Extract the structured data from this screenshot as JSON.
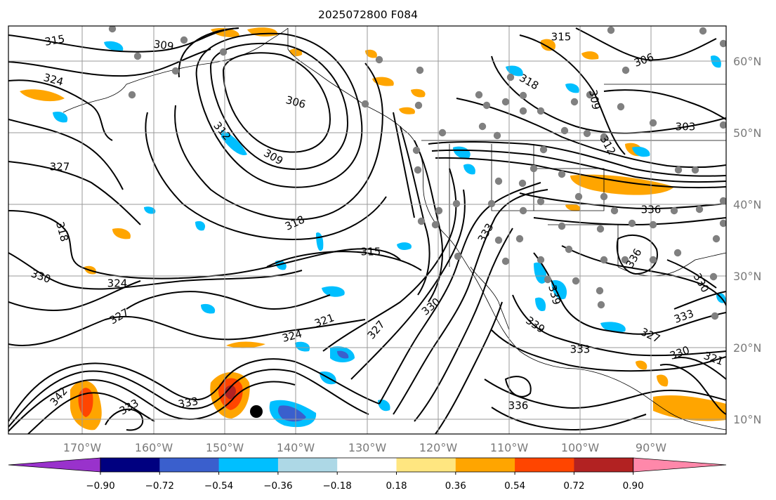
{
  "title": "2025072800 F084",
  "longitude_labels": [
    "170°W",
    "160°W",
    "150°W",
    "140°W",
    "130°W",
    "120°W",
    "110°W",
    "100°W",
    "90°W"
  ],
  "latitude_labels": [
    "60°N",
    "50°N",
    "40°N",
    "30°N",
    "20°N",
    "10°N"
  ],
  "colorbar": {
    "colors": [
      "#9932cc",
      "#000080",
      "#3a5fcd",
      "#00bfff",
      "#add8e6",
      "#ffffff",
      "#ffe680",
      "#ffa500",
      "#ff4500",
      "#b22222",
      "#ff88aa"
    ],
    "tick_labels": [
      "−0.90",
      "−0.72",
      "−0.54",
      "−0.36",
      "−0.18",
      "0.18",
      "0.36",
      "0.54",
      "0.72",
      "0.90"
    ]
  },
  "contour_labels": [
    "315",
    "309",
    "306",
    "315",
    "318",
    "306",
    "303",
    "309",
    "312",
    "324",
    "312",
    "309",
    "336",
    "327",
    "318",
    "318",
    "315",
    "333",
    "330",
    "324",
    "327",
    "321",
    "324",
    "330",
    "327",
    "336",
    "339",
    "330",
    "339",
    "333",
    "327",
    "333",
    "330",
    "321",
    "342",
    "333",
    "336",
    "333"
  ],
  "icon_names": [
    "station-dot",
    "storm-center-marker"
  ],
  "colors": {
    "land_gray": "#808080",
    "grid": "#9a9a9a",
    "contour": "#000000"
  }
}
